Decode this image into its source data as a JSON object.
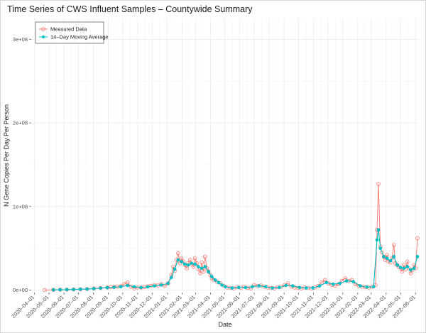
{
  "chart_data": {
    "type": "line",
    "title": "Time Series of CWS Influent Samples – Countywide Summary",
    "xlabel": "Date",
    "ylabel": "N Gene Copies Per Day Per Person",
    "x_tick_labels": [
      "2020–04–01",
      "2020–05–01",
      "2020–06–01",
      "2020–07–01",
      "2020–08–01",
      "2020–09–01",
      "2020–10–01",
      "2020–11–01",
      "2020–12–01",
      "2021–01–01",
      "2021–02–01",
      "2021–03–01",
      "2021–04–01",
      "2021–05–01",
      "2021–06–01",
      "2021–07–01",
      "2021–08–01",
      "2021–09–01",
      "2021–10–01",
      "2021–11–01",
      "2021–12–01",
      "2022–01–01",
      "2022–02–01",
      "2022–03–01",
      "2022–04–01",
      "2022–05–01",
      "2022–06–01"
    ],
    "y_tick_labels": [
      "0e+00",
      "1e+08",
      "2e+08",
      "3e+08"
    ],
    "y_ticks": [
      0,
      100000000,
      200000000,
      300000000
    ],
    "ylim": [
      -3000000,
      325000000
    ],
    "x_range": [
      "2020-03-25",
      "2022-06-08"
    ],
    "grid": true,
    "legend_position": "top-left",
    "series": [
      {
        "name": "Measured Data",
        "color": "#f8766d",
        "marker": "open-circle",
        "points": [
          [
            "2020-04-22",
            0
          ],
          [
            "2020-05-10",
            200000
          ],
          [
            "2020-05-24",
            400000
          ],
          [
            "2020-06-07",
            500000
          ],
          [
            "2020-06-21",
            700000
          ],
          [
            "2020-07-05",
            900000
          ],
          [
            "2020-07-19",
            1200000
          ],
          [
            "2020-08-02",
            1800000
          ],
          [
            "2020-08-16",
            2500000
          ],
          [
            "2020-08-30",
            3000000
          ],
          [
            "2020-09-06",
            3500000
          ],
          [
            "2020-09-13",
            3800000
          ],
          [
            "2020-09-20",
            4000000
          ],
          [
            "2020-09-27",
            4500000
          ],
          [
            "2020-10-04",
            7000000
          ],
          [
            "2020-10-11",
            9000000
          ],
          [
            "2020-10-18",
            4000000
          ],
          [
            "2020-10-25",
            2000000
          ],
          [
            "2020-11-01",
            3000000
          ],
          [
            "2020-11-08",
            3000000
          ],
          [
            "2020-11-15",
            3500000
          ],
          [
            "2020-11-22",
            4500000
          ],
          [
            "2020-11-29",
            5000000
          ],
          [
            "2020-12-06",
            6000000
          ],
          [
            "2020-12-13",
            5500000
          ],
          [
            "2020-12-20",
            7000000
          ],
          [
            "2020-12-27",
            5000000
          ],
          [
            "2021-01-03",
            8000000
          ],
          [
            "2021-01-10",
            18000000
          ],
          [
            "2021-01-14",
            28000000
          ],
          [
            "2021-01-17",
            23000000
          ],
          [
            "2021-01-21",
            36000000
          ],
          [
            "2021-01-24",
            44000000
          ],
          [
            "2021-01-28",
            32000000
          ],
          [
            "2021-01-31",
            38000000
          ],
          [
            "2021-02-04",
            34000000
          ],
          [
            "2021-02-07",
            30000000
          ],
          [
            "2021-02-11",
            26000000
          ],
          [
            "2021-02-14",
            32000000
          ],
          [
            "2021-02-18",
            36000000
          ],
          [
            "2021-02-21",
            31000000
          ],
          [
            "2021-02-25",
            28000000
          ],
          [
            "2021-02-28",
            38000000
          ],
          [
            "2021-03-04",
            32000000
          ],
          [
            "2021-03-07",
            25000000
          ],
          [
            "2021-03-11",
            20000000
          ],
          [
            "2021-03-14",
            33000000
          ],
          [
            "2021-03-18",
            22000000
          ],
          [
            "2021-03-21",
            40000000
          ],
          [
            "2021-03-25",
            26000000
          ],
          [
            "2021-03-28",
            22000000
          ],
          [
            "2021-04-01",
            18000000
          ],
          [
            "2021-04-04",
            14000000
          ],
          [
            "2021-04-08",
            12000000
          ],
          [
            "2021-04-15",
            10000000
          ],
          [
            "2021-04-22",
            8000000
          ],
          [
            "2021-04-29",
            5000000
          ],
          [
            "2021-05-06",
            3000000
          ],
          [
            "2021-05-13",
            2500000
          ],
          [
            "2021-05-20",
            2000000
          ],
          [
            "2021-05-27",
            3500000
          ],
          [
            "2021-06-03",
            2800000
          ],
          [
            "2021-06-10",
            4000000
          ],
          [
            "2021-06-17",
            2500000
          ],
          [
            "2021-06-24",
            2000000
          ],
          [
            "2021-07-01",
            6000000
          ],
          [
            "2021-07-08",
            5000000
          ],
          [
            "2021-07-15",
            5500000
          ],
          [
            "2021-07-22",
            4000000
          ],
          [
            "2021-07-29",
            3000000
          ],
          [
            "2021-08-05",
            2500000
          ],
          [
            "2021-08-12",
            2000000
          ],
          [
            "2021-08-19",
            3500000
          ],
          [
            "2021-08-26",
            4000000
          ],
          [
            "2021-09-02",
            6000000
          ],
          [
            "2021-09-09",
            8000000
          ],
          [
            "2021-09-16",
            4000000
          ],
          [
            "2021-09-23",
            3000000
          ],
          [
            "2021-09-30",
            2500000
          ],
          [
            "2021-10-07",
            2000000
          ],
          [
            "2021-10-14",
            3000000
          ],
          [
            "2021-10-21",
            2500000
          ],
          [
            "2021-10-28",
            2000000
          ],
          [
            "2021-11-04",
            3000000
          ],
          [
            "2021-11-11",
            5000000
          ],
          [
            "2021-11-18",
            9000000
          ],
          [
            "2021-11-25",
            12000000
          ],
          [
            "2021-12-02",
            8000000
          ],
          [
            "2021-12-09",
            6000000
          ],
          [
            "2021-12-16",
            5000000
          ],
          [
            "2021-12-23",
            7000000
          ],
          [
            "2021-12-30",
            11000000
          ],
          [
            "2022-01-06",
            14000000
          ],
          [
            "2022-01-13",
            11000000
          ],
          [
            "2022-01-20",
            12000000
          ],
          [
            "2022-01-27",
            7000000
          ],
          [
            "2022-02-03",
            5000000
          ],
          [
            "2022-02-10",
            4000000
          ],
          [
            "2022-02-17",
            3500000
          ],
          [
            "2022-02-24",
            3000000
          ],
          [
            "2022-03-03",
            4000000
          ],
          [
            "2022-03-10",
            6000000
          ],
          [
            "2022-03-13",
            72000000
          ],
          [
            "2022-03-16",
            127000000
          ],
          [
            "2022-03-20",
            52000000
          ],
          [
            "2022-03-23",
            45000000
          ],
          [
            "2022-03-27",
            40000000
          ],
          [
            "2022-03-30",
            36000000
          ],
          [
            "2022-04-03",
            42000000
          ],
          [
            "2022-04-06",
            34000000
          ],
          [
            "2022-04-10",
            33000000
          ],
          [
            "2022-04-13",
            38000000
          ],
          [
            "2022-04-17",
            54000000
          ],
          [
            "2022-04-20",
            32000000
          ],
          [
            "2022-04-24",
            30000000
          ],
          [
            "2022-04-27",
            28000000
          ],
          [
            "2022-05-01",
            26000000
          ],
          [
            "2022-05-04",
            22000000
          ],
          [
            "2022-05-08",
            30000000
          ],
          [
            "2022-05-11",
            25000000
          ],
          [
            "2022-05-15",
            34000000
          ],
          [
            "2022-05-18",
            26000000
          ],
          [
            "2022-05-22",
            20000000
          ],
          [
            "2022-05-25",
            24000000
          ],
          [
            "2022-05-29",
            30000000
          ],
          [
            "2022-06-01",
            26000000
          ],
          [
            "2022-06-05",
            62000000
          ]
        ]
      },
      {
        "name": "14–Day Moving Average",
        "color": "#00bfc4",
        "marker": "filled-circle",
        "points": [
          [
            "2020-05-10",
            200000
          ],
          [
            "2020-05-24",
            300000
          ],
          [
            "2020-06-07",
            500000
          ],
          [
            "2020-06-21",
            700000
          ],
          [
            "2020-07-05",
            900000
          ],
          [
            "2020-07-19",
            1200000
          ],
          [
            "2020-08-02",
            1700000
          ],
          [
            "2020-08-16",
            2300000
          ],
          [
            "2020-08-30",
            2800000
          ],
          [
            "2020-09-13",
            3300000
          ],
          [
            "2020-09-27",
            4000000
          ],
          [
            "2020-10-11",
            5500000
          ],
          [
            "2020-10-25",
            4000000
          ],
          [
            "2020-11-08",
            3000000
          ],
          [
            "2020-11-22",
            3800000
          ],
          [
            "2020-12-06",
            5000000
          ],
          [
            "2020-12-20",
            6000000
          ],
          [
            "2021-01-03",
            8000000
          ],
          [
            "2021-01-10",
            15000000
          ],
          [
            "2021-01-17",
            25000000
          ],
          [
            "2021-01-24",
            36000000
          ],
          [
            "2021-01-31",
            34000000
          ],
          [
            "2021-02-07",
            31000000
          ],
          [
            "2021-02-14",
            30000000
          ],
          [
            "2021-02-21",
            32000000
          ],
          [
            "2021-02-28",
            31000000
          ],
          [
            "2021-03-07",
            28000000
          ],
          [
            "2021-03-14",
            26000000
          ],
          [
            "2021-03-21",
            28000000
          ],
          [
            "2021-03-28",
            22000000
          ],
          [
            "2021-04-04",
            16000000
          ],
          [
            "2021-04-11",
            12000000
          ],
          [
            "2021-04-18",
            9000000
          ],
          [
            "2021-04-25",
            6000000
          ],
          [
            "2021-05-02",
            4000000
          ],
          [
            "2021-05-16",
            2500000
          ],
          [
            "2021-05-30",
            3000000
          ],
          [
            "2021-06-13",
            3000000
          ],
          [
            "2021-06-27",
            4000000
          ],
          [
            "2021-07-11",
            5000000
          ],
          [
            "2021-07-25",
            4000000
          ],
          [
            "2021-08-08",
            2500000
          ],
          [
            "2021-08-22",
            3000000
          ],
          [
            "2021-09-05",
            5500000
          ],
          [
            "2021-09-19",
            5000000
          ],
          [
            "2021-10-03",
            3000000
          ],
          [
            "2021-10-17",
            2500000
          ],
          [
            "2021-10-31",
            2500000
          ],
          [
            "2021-11-14",
            5000000
          ],
          [
            "2021-11-28",
            9000000
          ],
          [
            "2021-12-12",
            7000000
          ],
          [
            "2021-12-26",
            8000000
          ],
          [
            "2022-01-09",
            11000000
          ],
          [
            "2022-01-23",
            10000000
          ],
          [
            "2022-02-06",
            5000000
          ],
          [
            "2022-02-20",
            3500000
          ],
          [
            "2022-03-06",
            4000000
          ],
          [
            "2022-03-13",
            60000000
          ],
          [
            "2022-03-16",
            72000000
          ],
          [
            "2022-03-20",
            50000000
          ],
          [
            "2022-03-27",
            40000000
          ],
          [
            "2022-04-03",
            38000000
          ],
          [
            "2022-04-10",
            35000000
          ],
          [
            "2022-04-17",
            40000000
          ],
          [
            "2022-04-24",
            30000000
          ],
          [
            "2022-05-01",
            27000000
          ],
          [
            "2022-05-08",
            26000000
          ],
          [
            "2022-05-15",
            28000000
          ],
          [
            "2022-05-22",
            24000000
          ],
          [
            "2022-05-29",
            26000000
          ],
          [
            "2022-06-05",
            40000000
          ]
        ]
      }
    ]
  }
}
